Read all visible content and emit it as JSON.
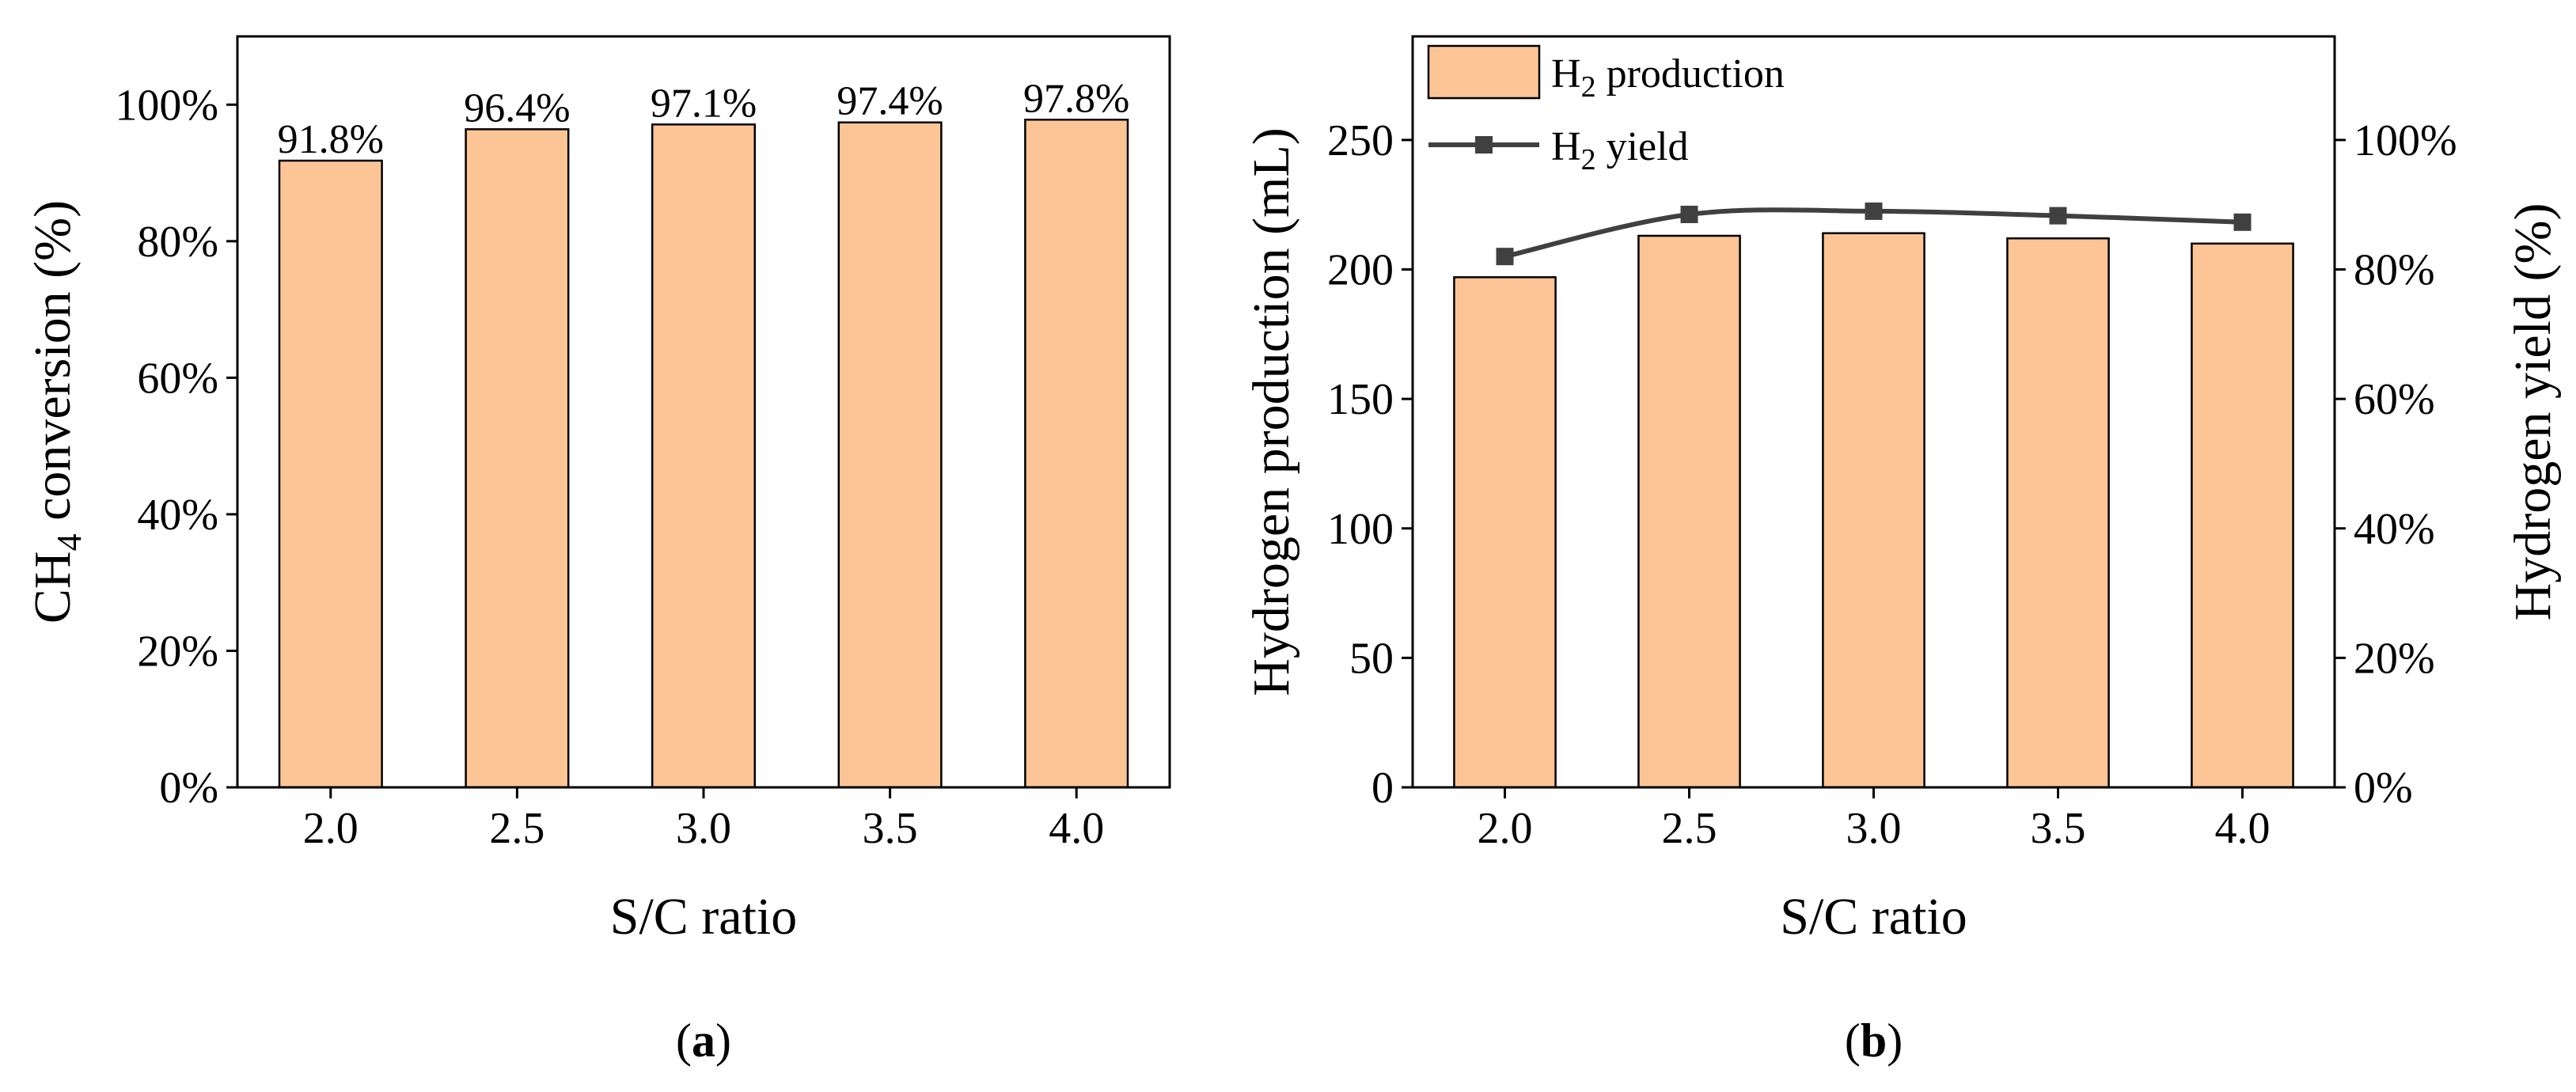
{
  "colors": {
    "bar_fill": "#fdc596",
    "bar_stroke": "#000000",
    "line": "#404040",
    "marker": "#404040"
  },
  "chart_data": [
    {
      "panel": "a",
      "panel_label": "a",
      "type": "bar",
      "categories": [
        "2.0",
        "2.5",
        "3.0",
        "3.5",
        "4.0"
      ],
      "values": [
        91.8,
        96.4,
        97.1,
        97.4,
        97.8
      ],
      "data_labels": [
        "91.8%",
        "96.4%",
        "97.1%",
        "97.4%",
        "97.8%"
      ],
      "title": "",
      "xlabel": "S/C ratio",
      "ylabel": "CH",
      "ylabel_sub": "4",
      "ylabel_tail": " conversion (%)",
      "ylim": [
        0,
        110
      ],
      "yticks": [
        0,
        20,
        40,
        60,
        80,
        100
      ],
      "ytick_labels": [
        "0%",
        "20%",
        "40%",
        "60%",
        "80%",
        "100%"
      ],
      "grid": false
    },
    {
      "panel": "b",
      "panel_label": "b",
      "type": "bar+line",
      "categories": [
        "2.0",
        "2.5",
        "3.0",
        "3.5",
        "4.0"
      ],
      "series": [
        {
          "name": "H2 production",
          "legend_main": "H",
          "legend_sub": "2",
          "legend_tail": " production",
          "kind": "bar",
          "axis": "left",
          "values": [
            197,
            213,
            214,
            212,
            210
          ]
        },
        {
          "name": "H2 yield",
          "legend_main": "H",
          "legend_sub": "2",
          "legend_tail": " yield",
          "kind": "line",
          "axis": "right",
          "values": [
            82,
            88.5,
            89,
            88.3,
            87.3
          ]
        }
      ],
      "title": "",
      "xlabel": "S/C ratio",
      "ylabel_left": "Hydrogen production (mL)",
      "ylabel_right": "Hydrogen yield (%)",
      "ylim_left": [
        0,
        290
      ],
      "yticks_left": [
        0,
        50,
        100,
        150,
        200,
        250
      ],
      "ytick_labels_left": [
        "0",
        "50",
        "100",
        "150",
        "200",
        "250"
      ],
      "ylim_right": [
        0,
        116
      ],
      "yticks_right": [
        0,
        20,
        40,
        60,
        80,
        100
      ],
      "ytick_labels_right": [
        "0%",
        "20%",
        "40%",
        "60%",
        "80%",
        "100%"
      ],
      "legend_position": "top-left",
      "grid": false
    }
  ]
}
